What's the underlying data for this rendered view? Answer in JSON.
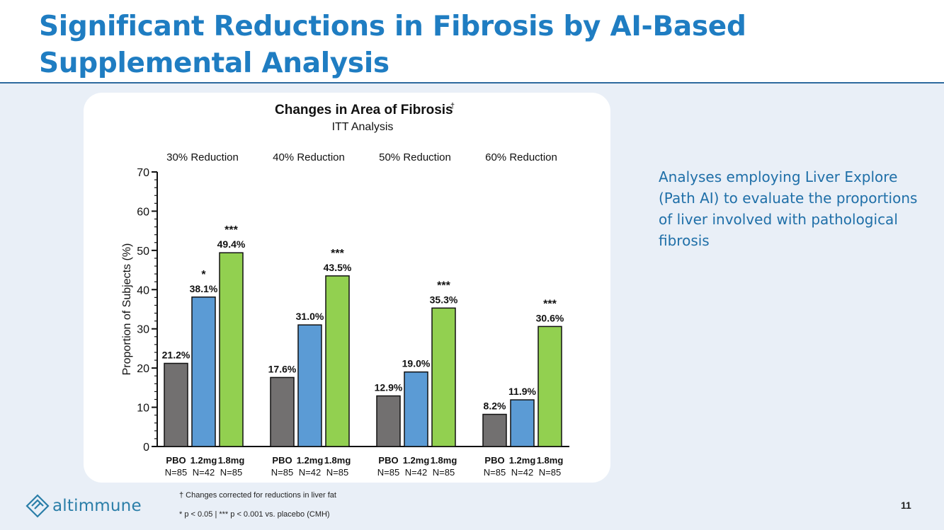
{
  "slide": {
    "title_line1": "Significant Reductions in Fibrosis by AI-Based",
    "title_line2": "Supplemental Analysis",
    "note": "Analyses employing Liver Explore (Path AI) to evaluate the proportions of liver involved with pathological fibrosis",
    "footnote1": "† Changes corrected for reductions in liver fat",
    "footnote2": "* p < 0.05 | *** p < 0.001 vs. placebo (CMH)",
    "logo_text": "altimmune",
    "page_number": "11"
  },
  "chart_data": {
    "type": "bar",
    "title": "Changes in Area of Fibrosis",
    "title_superscript": "†",
    "subtitle": "ITT Analysis",
    "ylabel": "Proportion of Subjects (%)",
    "ylim": [
      0,
      70
    ],
    "yticks": [
      0,
      10,
      20,
      30,
      40,
      50,
      60,
      70
    ],
    "groups": [
      "30% Reduction",
      "40% Reduction",
      "50% Reduction",
      "60% Reduction"
    ],
    "bar_labels": [
      "PBO",
      "1.2mg",
      "1.8mg"
    ],
    "bar_n": [
      "N=85",
      "N=42",
      "N=85"
    ],
    "series": [
      {
        "name": "PBO",
        "color": "#727070",
        "values": [
          21.2,
          17.6,
          12.9,
          8.2
        ],
        "labels": [
          "21.2%",
          "17.6%",
          "12.9%",
          "8.2%"
        ],
        "sig": [
          "",
          "",
          "",
          ""
        ]
      },
      {
        "name": "1.2mg",
        "color": "#5b9bd5",
        "values": [
          38.1,
          31.0,
          19.0,
          11.9
        ],
        "labels": [
          "38.1%",
          "31.0%",
          "19.0%",
          "11.9%"
        ],
        "sig": [
          "*",
          "",
          "",
          ""
        ]
      },
      {
        "name": "1.8mg",
        "color": "#92d050",
        "values": [
          49.4,
          43.5,
          35.3,
          30.6
        ],
        "labels": [
          "49.4%",
          "43.5%",
          "35.3%",
          "30.6%"
        ],
        "sig": [
          "***",
          "***",
          "***",
          "***"
        ]
      }
    ]
  }
}
